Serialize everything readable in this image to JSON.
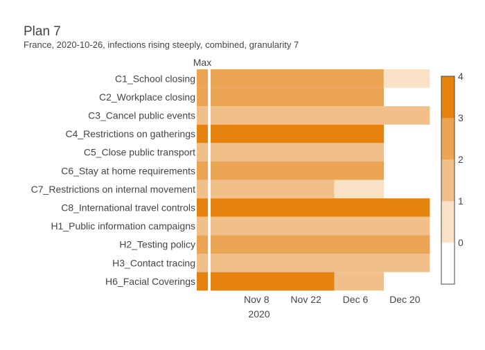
{
  "chart_data": {
    "type": "heatmap",
    "title": "Plan 7",
    "subtitle": "France, 2020-10-26, infections rising steeply, combined, granularity 7",
    "max_column_label": "Max",
    "x_ticks": [
      "Nov 8",
      "Nov 22",
      "Dec 6",
      "Dec 20"
    ],
    "x_year_label": "2020",
    "x_start": "2020-10-26",
    "x_end": "2020-12-27",
    "period_days": 7,
    "categories": [
      "C1_School closing",
      "C2_Workplace closing",
      "C3_Cancel public events",
      "C4_Restrictions on gatherings",
      "C5_Close public transport",
      "C6_Stay at home requirements",
      "C7_Restrictions on internal movement",
      "C8_International travel controls",
      "H1_Public information campaigns",
      "H2_Testing policy",
      "H3_Contact tracing",
      "H6_Facial Coverings"
    ],
    "max_values": [
      3,
      3,
      2,
      4,
      2,
      3,
      2,
      4,
      2,
      3,
      2,
      4
    ],
    "rows": [
      [
        3,
        3,
        3,
        3,
        3,
        3,
        3,
        3,
        3,
        3,
        3,
        3,
        3,
        3,
        3,
        3,
        3,
        3,
        3,
        3,
        3,
        3,
        3,
        3,
        3,
        3,
        3,
        3,
        3,
        3,
        3,
        3,
        3,
        3,
        3,
        3,
        3,
        3,
        3,
        3,
        3,
        3,
        3,
        3,
        3,
        3,
        3,
        3,
        3,
        1,
        1,
        1,
        1,
        1,
        1,
        1,
        1,
        1,
        1,
        1,
        1,
        1
      ],
      [
        3,
        3,
        3,
        3,
        3,
        3,
        3,
        3,
        3,
        3,
        3,
        3,
        3,
        3,
        3,
        3,
        3,
        3,
        3,
        3,
        3,
        3,
        3,
        3,
        3,
        3,
        3,
        3,
        3,
        3,
        3,
        3,
        3,
        3,
        3,
        3,
        3,
        3,
        3,
        3,
        3,
        3,
        3,
        3,
        3,
        3,
        3,
        3,
        3,
        null,
        null,
        null,
        null,
        null,
        null,
        null,
        null,
        null,
        null,
        null,
        null,
        null
      ],
      [
        2,
        2,
        2,
        2,
        2,
        2,
        2,
        2,
        2,
        2,
        2,
        2,
        2,
        2,
        2,
        2,
        2,
        2,
        2,
        2,
        2,
        2,
        2,
        2,
        2,
        2,
        2,
        2,
        2,
        2,
        2,
        2,
        2,
        2,
        2,
        2,
        2,
        2,
        2,
        2,
        2,
        2,
        2,
        2,
        2,
        2,
        2,
        2,
        2,
        2,
        2,
        2,
        2,
        2,
        2,
        2,
        2,
        2,
        2,
        2,
        2,
        2
      ],
      [
        4,
        4,
        4,
        4,
        4,
        4,
        4,
        4,
        4,
        4,
        4,
        4,
        4,
        4,
        4,
        4,
        4,
        4,
        4,
        4,
        4,
        4,
        4,
        4,
        4,
        4,
        4,
        4,
        4,
        4,
        4,
        4,
        4,
        4,
        4,
        4,
        4,
        4,
        4,
        4,
        4,
        4,
        4,
        4,
        4,
        4,
        4,
        4,
        4,
        null,
        null,
        null,
        null,
        null,
        null,
        null,
        null,
        null,
        null,
        null,
        null,
        null
      ],
      [
        2,
        2,
        2,
        2,
        2,
        2,
        2,
        2,
        2,
        2,
        2,
        2,
        2,
        2,
        2,
        2,
        2,
        2,
        2,
        2,
        2,
        2,
        2,
        2,
        2,
        2,
        2,
        2,
        2,
        2,
        2,
        2,
        2,
        2,
        2,
        2,
        2,
        2,
        2,
        2,
        2,
        2,
        2,
        2,
        2,
        2,
        2,
        2,
        2,
        null,
        null,
        null,
        null,
        null,
        null,
        null,
        null,
        null,
        null,
        null,
        null,
        null
      ],
      [
        3,
        3,
        3,
        3,
        3,
        3,
        3,
        3,
        3,
        3,
        3,
        3,
        3,
        3,
        3,
        3,
        3,
        3,
        3,
        3,
        3,
        3,
        3,
        3,
        3,
        3,
        3,
        3,
        3,
        3,
        3,
        3,
        3,
        3,
        3,
        3,
        3,
        3,
        3,
        3,
        3,
        3,
        3,
        3,
        3,
        3,
        3,
        3,
        3,
        null,
        null,
        null,
        null,
        null,
        null,
        null,
        null,
        null,
        null,
        null,
        null,
        null
      ],
      [
        2,
        2,
        2,
        2,
        2,
        2,
        2,
        2,
        2,
        2,
        2,
        2,
        2,
        2,
        2,
        2,
        2,
        2,
        2,
        2,
        2,
        2,
        2,
        2,
        2,
        2,
        2,
        2,
        2,
        2,
        2,
        2,
        2,
        2,
        2,
        1,
        1,
        1,
        1,
        1,
        1,
        1,
        1,
        1,
        1,
        1,
        1,
        1,
        1,
        null,
        null,
        null,
        null,
        null,
        null,
        null,
        null,
        null,
        null,
        null,
        null,
        null
      ],
      [
        4,
        4,
        4,
        4,
        4,
        4,
        4,
        4,
        4,
        4,
        4,
        4,
        4,
        4,
        4,
        4,
        4,
        4,
        4,
        4,
        4,
        4,
        4,
        4,
        4,
        4,
        4,
        4,
        4,
        4,
        4,
        4,
        4,
        4,
        4,
        4,
        4,
        4,
        4,
        4,
        4,
        4,
        4,
        4,
        4,
        4,
        4,
        4,
        4,
        4,
        4,
        4,
        4,
        4,
        4,
        4,
        4,
        4,
        4,
        4,
        4,
        4
      ],
      [
        2,
        2,
        2,
        2,
        2,
        2,
        2,
        2,
        2,
        2,
        2,
        2,
        2,
        2,
        2,
        2,
        2,
        2,
        2,
        2,
        2,
        2,
        2,
        2,
        2,
        2,
        2,
        2,
        2,
        2,
        2,
        2,
        2,
        2,
        2,
        2,
        2,
        2,
        2,
        2,
        2,
        2,
        2,
        2,
        2,
        2,
        2,
        2,
        2,
        2,
        2,
        2,
        2,
        2,
        2,
        2,
        2,
        2,
        2,
        2,
        2,
        2
      ],
      [
        3,
        3,
        3,
        3,
        3,
        3,
        3,
        3,
        3,
        3,
        3,
        3,
        3,
        3,
        3,
        3,
        3,
        3,
        3,
        3,
        3,
        3,
        3,
        3,
        3,
        3,
        3,
        3,
        3,
        3,
        3,
        3,
        3,
        3,
        3,
        3,
        3,
        3,
        3,
        3,
        3,
        3,
        3,
        3,
        3,
        3,
        3,
        3,
        3,
        3,
        3,
        3,
        3,
        3,
        3,
        3,
        3,
        3,
        3,
        3,
        3,
        3
      ],
      [
        2,
        2,
        2,
        2,
        2,
        2,
        2,
        2,
        2,
        2,
        2,
        2,
        2,
        2,
        2,
        2,
        2,
        2,
        2,
        2,
        2,
        2,
        2,
        2,
        2,
        2,
        2,
        2,
        2,
        2,
        2,
        2,
        2,
        2,
        2,
        2,
        2,
        2,
        2,
        2,
        2,
        2,
        2,
        2,
        2,
        2,
        2,
        2,
        2,
        2,
        2,
        2,
        2,
        2,
        2,
        2,
        2,
        2,
        2,
        2,
        2,
        2
      ],
      [
        4,
        4,
        4,
        4,
        4,
        4,
        4,
        4,
        4,
        4,
        4,
        4,
        4,
        4,
        4,
        4,
        4,
        4,
        4,
        4,
        4,
        4,
        4,
        4,
        4,
        4,
        4,
        4,
        4,
        4,
        4,
        4,
        4,
        4,
        4,
        2,
        2,
        2,
        2,
        2,
        2,
        2,
        2,
        2,
        2,
        2,
        2,
        2,
        2,
        null,
        null,
        null,
        null,
        null,
        null,
        null,
        null,
        null,
        null,
        null,
        null,
        null
      ]
    ],
    "colorscale": {
      "0": "#ffffff",
      "1": "#fae2c6",
      "2": "#f1c08a",
      "3": "#eba454",
      "4": "#e6820e"
    },
    "colorbar_ticks": [
      "0",
      "1",
      "2",
      "3",
      "4"
    ],
    "colorbar_range": [
      -0.5,
      4.5
    ]
  }
}
